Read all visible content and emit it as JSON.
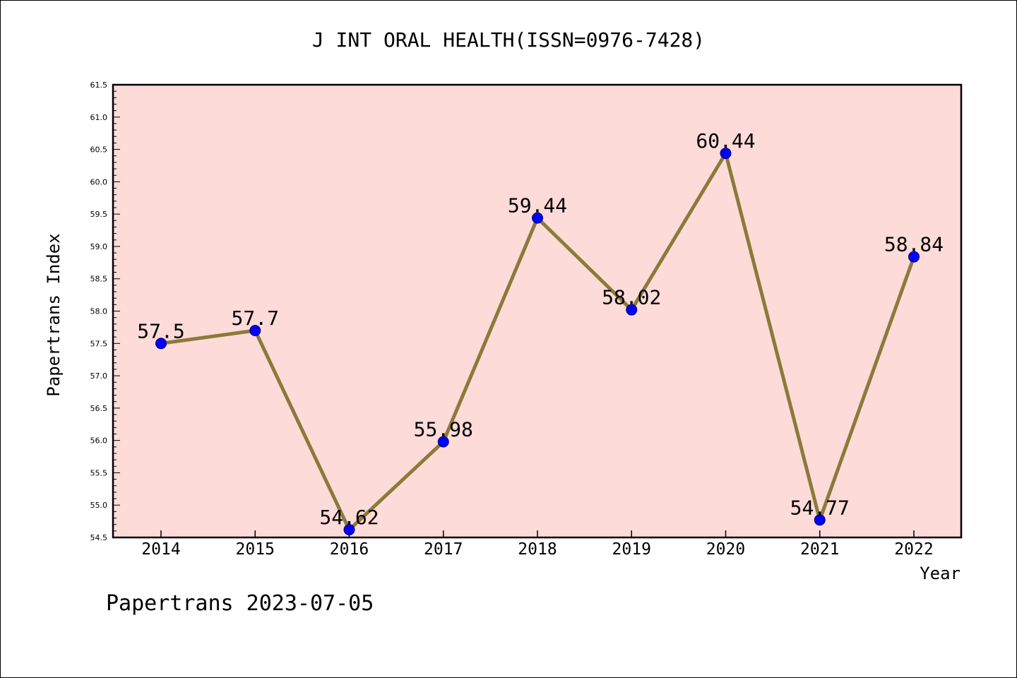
{
  "chart_data": {
    "type": "line",
    "title": "J INT ORAL HEALTH(ISSN=0976-7428)",
    "xlabel": "Year",
    "ylabel": "Papertrans Index",
    "categories": [
      "2014",
      "2015",
      "2016",
      "2017",
      "2018",
      "2019",
      "2020",
      "2021",
      "2022"
    ],
    "values": [
      57.5,
      57.7,
      54.62,
      55.98,
      59.44,
      58.02,
      60.44,
      54.77,
      58.84
    ],
    "data_labels": [
      "57.5",
      "57.7",
      "54.62",
      "55.98",
      "59.44",
      "58.02",
      "60.44",
      "54.77",
      "58.84"
    ],
    "ylim": [
      54.5,
      61.5
    ],
    "yticks": [
      "54.5",
      "55.0",
      "55.5",
      "56.0",
      "56.5",
      "57.0",
      "57.5",
      "58.0",
      "58.5",
      "59.0",
      "59.5",
      "60.0",
      "60.5",
      "61.0",
      "61.5"
    ],
    "grid": false,
    "legend": "none",
    "colors": {
      "plot_background": "#fddbd8",
      "line": "#8b7a3a",
      "marker": "#0000ff"
    }
  },
  "footer": {
    "credit": "Papertrans 2023-07-05"
  }
}
